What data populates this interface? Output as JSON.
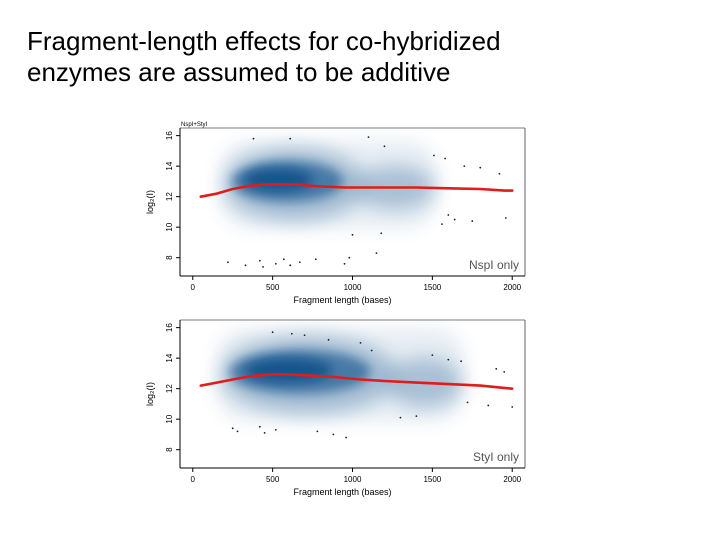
{
  "slide": {
    "title": "Fragment-length effects for co-hybridized\nenzymes are assumed to be additive"
  },
  "colors": {
    "density": "#0b4f8a",
    "trend_line": "#e21b1b",
    "axis": "#000000",
    "panel_label": "#555555"
  },
  "chart_data": [
    {
      "type": "scatter",
      "style": "smoothed density scatter with red trend line",
      "corner_label": "NspI+StyI",
      "panel_label": "NspI only",
      "xlabel": "Fragment length (bases)",
      "ylabel": "log₂(I)",
      "xlim": [
        -80,
        2080
      ],
      "ylim": [
        6.8,
        16.5
      ],
      "xticks": [
        0,
        500,
        1000,
        1500,
        2000
      ],
      "yticks": [
        8,
        10,
        12,
        14,
        16
      ],
      "grid": false,
      "trend": {
        "x": [
          50,
          150,
          250,
          350,
          450,
          550,
          650,
          750,
          850,
          950,
          1050,
          1200,
          1400,
          1600,
          1800,
          1950,
          2000
        ],
        "y": [
          12.0,
          12.2,
          12.5,
          12.7,
          12.8,
          12.8,
          12.8,
          12.7,
          12.65,
          12.6,
          12.6,
          12.6,
          12.6,
          12.55,
          12.5,
          12.4,
          12.4
        ]
      },
      "density": {
        "core": {
          "x_range": [
            220,
            1050
          ],
          "y_center": 12.8,
          "y_spread": 1.5
        },
        "tail": {
          "x_range": [
            1050,
            1480
          ],
          "y_center": 12.6,
          "y_spread": 0.7
        }
      },
      "outliers": {
        "x": [
          380,
          610,
          1100,
          1200,
          1510,
          1580,
          1700,
          1800,
          1920,
          1600,
          1640,
          1560,
          1750,
          1000,
          1180,
          1960,
          220,
          330,
          420,
          440,
          520,
          570,
          610,
          670,
          770,
          950,
          980,
          1150
        ],
        "y": [
          15.8,
          15.8,
          15.9,
          15.3,
          14.7,
          14.5,
          14.0,
          13.9,
          13.5,
          10.8,
          10.5,
          10.2,
          10.4,
          9.5,
          9.6,
          10.6,
          7.7,
          7.5,
          7.8,
          7.4,
          7.6,
          7.9,
          7.5,
          7.7,
          7.9,
          7.6,
          8.0,
          8.3
        ]
      }
    },
    {
      "type": "scatter",
      "style": "smoothed density scatter with red trend line",
      "panel_label": "StyI only",
      "xlabel": "Fragment length (bases)",
      "ylabel": "log₂(I)",
      "xlim": [
        -80,
        2080
      ],
      "ylim": [
        6.8,
        16.5
      ],
      "xticks": [
        0,
        500,
        1000,
        1500,
        2000
      ],
      "yticks": [
        8,
        10,
        12,
        14,
        16
      ],
      "grid": false,
      "trend": {
        "x": [
          50,
          150,
          250,
          350,
          450,
          550,
          650,
          750,
          850,
          950,
          1050,
          1200,
          1400,
          1600,
          1800,
          1950,
          2000
        ],
        "y": [
          12.2,
          12.4,
          12.6,
          12.8,
          12.9,
          12.95,
          12.9,
          12.85,
          12.8,
          12.7,
          12.6,
          12.5,
          12.4,
          12.3,
          12.2,
          12.05,
          12.0
        ]
      },
      "density": {
        "core": {
          "x_range": [
            200,
            1250
          ],
          "y_center": 12.9,
          "y_spread": 1.6
        },
        "tail": {
          "x_range": [
            1250,
            1650
          ],
          "y_center": 12.4,
          "y_spread": 0.8
        }
      },
      "outliers": {
        "x": [
          500,
          620,
          700,
          850,
          1050,
          1120,
          1500,
          1600,
          1680,
          1900,
          1950,
          1720,
          1850,
          2000,
          1400,
          1300,
          250,
          280,
          420,
          450,
          520,
          780,
          880,
          960
        ],
        "y": [
          15.7,
          15.6,
          15.5,
          15.2,
          15.0,
          14.5,
          14.2,
          13.9,
          13.8,
          13.3,
          13.1,
          11.1,
          10.9,
          10.8,
          10.2,
          10.1,
          9.4,
          9.2,
          9.5,
          9.1,
          9.3,
          9.2,
          9.0,
          8.8
        ]
      }
    }
  ]
}
